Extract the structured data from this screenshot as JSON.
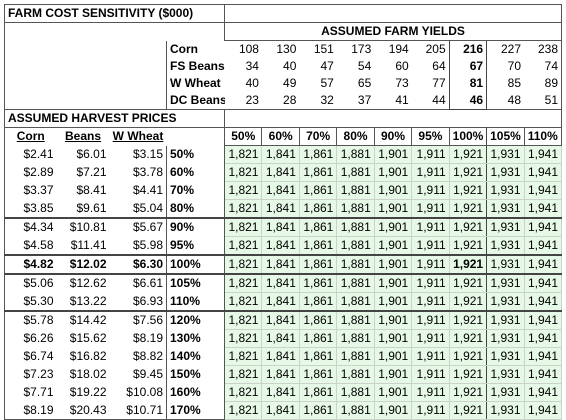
{
  "title": "FARM COST SENSITIVITY ($000)",
  "yields": {
    "header": "ASSUMED FARM YIELDS",
    "rows": [
      {
        "crop": "Corn",
        "values": [
          108,
          130,
          151,
          173,
          194,
          205,
          216,
          227,
          238
        ]
      },
      {
        "crop": "FS Beans",
        "values": [
          34,
          40,
          47,
          54,
          60,
          64,
          67,
          70,
          74
        ]
      },
      {
        "crop": "W Wheat",
        "values": [
          40,
          49,
          57,
          65,
          73,
          77,
          81,
          85,
          89
        ]
      },
      {
        "crop": "DC Beans",
        "values": [
          23,
          28,
          32,
          37,
          41,
          44,
          46,
          48,
          51
        ]
      }
    ]
  },
  "prices": {
    "header": "ASSUMED HARVEST PRICES",
    "columns": [
      "Corn",
      "Beans",
      "W Wheat"
    ],
    "rows": [
      {
        "prices": [
          "$2.41",
          "$6.01",
          "$3.15"
        ],
        "level": "50%"
      },
      {
        "prices": [
          "$2.89",
          "$7.21",
          "$3.78"
        ],
        "level": "60%"
      },
      {
        "prices": [
          "$3.37",
          "$8.41",
          "$4.41"
        ],
        "level": "70%"
      },
      {
        "prices": [
          "$3.85",
          "$9.61",
          "$5.04"
        ],
        "level": "80%"
      },
      {
        "prices": [
          "$4.34",
          "$10.81",
          "$5.67"
        ],
        "level": "90%"
      },
      {
        "prices": [
          "$4.58",
          "$11.41",
          "$5.98"
        ],
        "level": "95%"
      },
      {
        "prices": [
          "$4.82",
          "$12.02",
          "$6.30"
        ],
        "level": "100%"
      },
      {
        "prices": [
          "$5.06",
          "$12.62",
          "$6.61"
        ],
        "level": "105%"
      },
      {
        "prices": [
          "$5.30",
          "$13.22",
          "$6.93"
        ],
        "level": "110%"
      },
      {
        "prices": [
          "$5.78",
          "$14.42",
          "$7.56"
        ],
        "level": "120%"
      },
      {
        "prices": [
          "$6.26",
          "$15.62",
          "$8.19"
        ],
        "level": "130%"
      },
      {
        "prices": [
          "$6.74",
          "$16.82",
          "$8.82"
        ],
        "level": "140%"
      },
      {
        "prices": [
          "$7.23",
          "$18.02",
          "$9.45"
        ],
        "level": "150%"
      },
      {
        "prices": [
          "$7.71",
          "$19.22",
          "$10.08"
        ],
        "level": "160%"
      },
      {
        "prices": [
          "$8.19",
          "$20.43",
          "$10.71"
        ],
        "level": "170%"
      }
    ]
  },
  "grid": {
    "columns": [
      "50%",
      "60%",
      "70%",
      "80%",
      "90%",
      "95%",
      "100%",
      "105%",
      "110%"
    ],
    "rows": [
      [
        "1,821",
        "1,841",
        "1,861",
        "1,881",
        "1,901",
        "1,911",
        "1,921",
        "1,931",
        "1,941"
      ],
      [
        "1,821",
        "1,841",
        "1,861",
        "1,881",
        "1,901",
        "1,911",
        "1,921",
        "1,931",
        "1,941"
      ],
      [
        "1,821",
        "1,841",
        "1,861",
        "1,881",
        "1,901",
        "1,911",
        "1,921",
        "1,931",
        "1,941"
      ],
      [
        "1,821",
        "1,841",
        "1,861",
        "1,881",
        "1,901",
        "1,911",
        "1,921",
        "1,931",
        "1,941"
      ],
      [
        "1,821",
        "1,841",
        "1,861",
        "1,881",
        "1,901",
        "1,911",
        "1,921",
        "1,931",
        "1,941"
      ],
      [
        "1,821",
        "1,841",
        "1,861",
        "1,881",
        "1,901",
        "1,911",
        "1,921",
        "1,931",
        "1,941"
      ],
      [
        "1,821",
        "1,841",
        "1,861",
        "1,881",
        "1,901",
        "1,911",
        "1,921",
        "1,931",
        "1,941"
      ],
      [
        "1,821",
        "1,841",
        "1,861",
        "1,881",
        "1,901",
        "1,911",
        "1,921",
        "1,931",
        "1,941"
      ],
      [
        "1,821",
        "1,841",
        "1,861",
        "1,881",
        "1,901",
        "1,911",
        "1,921",
        "1,931",
        "1,941"
      ],
      [
        "1,821",
        "1,841",
        "1,861",
        "1,881",
        "1,901",
        "1,911",
        "1,921",
        "1,931",
        "1,941"
      ],
      [
        "1,821",
        "1,841",
        "1,861",
        "1,881",
        "1,901",
        "1,911",
        "1,921",
        "1,931",
        "1,941"
      ],
      [
        "1,821",
        "1,841",
        "1,861",
        "1,881",
        "1,901",
        "1,911",
        "1,921",
        "1,931",
        "1,941"
      ],
      [
        "1,821",
        "1,841",
        "1,861",
        "1,881",
        "1,901",
        "1,911",
        "1,921",
        "1,931",
        "1,941"
      ],
      [
        "1,821",
        "1,841",
        "1,861",
        "1,881",
        "1,901",
        "1,911",
        "1,921",
        "1,931",
        "1,941"
      ],
      [
        "1,821",
        "1,841",
        "1,861",
        "1,881",
        "1,901",
        "1,911",
        "1,921",
        "1,931",
        "1,941"
      ]
    ]
  }
}
